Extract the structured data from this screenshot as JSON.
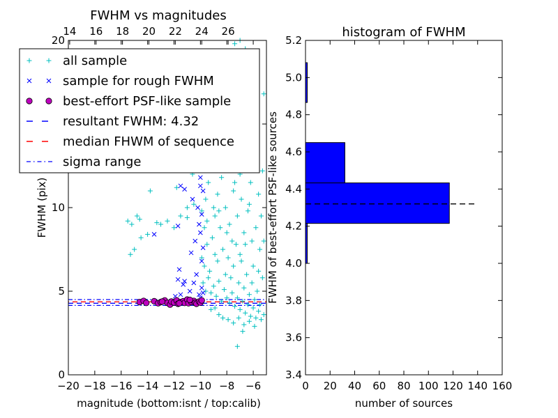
{
  "chart_data": [
    {
      "type": "scatter",
      "title": "FWHM vs magnitudes",
      "xlabel": "magnitude (bottom:isnt / top:calib)",
      "ylabel": "FWHM (pix)",
      "xlim": [
        -20,
        -5
      ],
      "ylim": [
        0,
        20
      ],
      "xticks": [
        "−20",
        "−18",
        "−16",
        "−14",
        "−12",
        "−10",
        "−8",
        "−6"
      ],
      "xtick_values": [
        -20,
        -18,
        -16,
        -14,
        -12,
        -10,
        -8,
        -6
      ],
      "yticks": [
        "0",
        "5",
        "10",
        "15",
        "20"
      ],
      "ytick_values": [
        0,
        5,
        10,
        15,
        20
      ],
      "top_axis_ticks": [
        "14",
        "16",
        "18",
        "20",
        "22",
        "24",
        "26"
      ],
      "top_axis_values": [
        14,
        16,
        18,
        20,
        22,
        24,
        26
      ],
      "top_axis_offset": 33.9,
      "grid": false,
      "legend_position": "upper-left",
      "legend": [
        {
          "label": "all sample",
          "marker": "+",
          "color": "#00bfbf"
        },
        {
          "label": "sample for rough FWHM",
          "marker": "x",
          "color": "#0000ff"
        },
        {
          "label": "best-effort PSF-like sample",
          "marker": "o",
          "color": "#bf00bf"
        },
        {
          "label": "resultant FWHM: 4.32",
          "line": "dashed",
          "color": "#0000ff"
        },
        {
          "label": "median FHWM of sequence",
          "line": "dashed",
          "color": "#ff0000"
        },
        {
          "label": "sigma range",
          "line": "dashdot",
          "color": "#0000ff"
        }
      ],
      "resultant_fwhm": 4.32,
      "median_fwhm": 4.32,
      "sigma_range": [
        4.15,
        4.5
      ],
      "series": [
        {
          "name": "all sample",
          "marker": "+",
          "color": "#00bfbf",
          "points": [
            [
              -15.5,
              9.2
            ],
            [
              -15.2,
              9.0
            ],
            [
              -14.8,
              9.5
            ],
            [
              -14.6,
              9.3
            ],
            [
              -14.5,
              8.2
            ],
            [
              -15.0,
              7.5
            ],
            [
              -15.3,
              7.2
            ],
            [
              -14.0,
              8.4
            ],
            [
              -13.3,
              9.1
            ],
            [
              -13.0,
              9.0
            ],
            [
              -12.5,
              9.2
            ],
            [
              -12.0,
              8.8
            ],
            [
              -11.5,
              9.5
            ],
            [
              -11.0,
              10.0
            ],
            [
              -11.0,
              9.4
            ],
            [
              -10.5,
              10.2
            ],
            [
              -10.2,
              13.2
            ],
            [
              -10.0,
              12.5
            ],
            [
              -10.6,
              12.0
            ],
            [
              -11.8,
              11.2
            ],
            [
              -12.2,
              12.3
            ],
            [
              -13.8,
              11.0
            ],
            [
              -12.8,
              12.8
            ],
            [
              -10.3,
              14.0
            ],
            [
              -10.0,
              15.0
            ],
            [
              -9.8,
              16.2
            ],
            [
              -9.5,
              17.2
            ],
            [
              -9.2,
              18.4
            ],
            [
              -9.0,
              17.8
            ],
            [
              -8.8,
              16.5
            ],
            [
              -8.5,
              15.0
            ],
            [
              -8.2,
              14.0
            ],
            [
              -7.9,
              14.5
            ],
            [
              -7.6,
              16.0
            ],
            [
              -7.3,
              13.0
            ],
            [
              -7.0,
              12.0
            ],
            [
              -6.8,
              14.8
            ],
            [
              -6.5,
              12.5
            ],
            [
              -6.2,
              11.5
            ],
            [
              -5.9,
              13.0
            ],
            [
              -5.6,
              10.8
            ],
            [
              -5.3,
              12.2
            ],
            [
              -5.2,
              16.8
            ],
            [
              -7.4,
              19.8
            ],
            [
              -7.0,
              20.0
            ],
            [
              -6.6,
              19.5
            ],
            [
              -9.9,
              9.8
            ],
            [
              -9.6,
              10.5
            ],
            [
              -9.4,
              11.5
            ],
            [
              -9.1,
              12.5
            ],
            [
              -8.9,
              9.5
            ],
            [
              -8.7,
              10.8
            ],
            [
              -8.4,
              11.8
            ],
            [
              -8.1,
              10.0
            ],
            [
              -7.8,
              9.0
            ],
            [
              -7.5,
              11.0
            ],
            [
              -7.2,
              9.5
            ],
            [
              -6.9,
              10.5
            ],
            [
              -6.7,
              8.5
            ],
            [
              -6.4,
              9.8
            ],
            [
              -6.1,
              8.0
            ],
            [
              -5.8,
              8.8
            ],
            [
              -5.5,
              7.5
            ],
            [
              -5.2,
              8.0
            ],
            [
              -9.9,
              7.0
            ],
            [
              -9.7,
              6.5
            ],
            [
              -9.5,
              7.8
            ],
            [
              -9.3,
              6.2
            ],
            [
              -9.1,
              8.2
            ],
            [
              -8.9,
              7.2
            ],
            [
              -8.7,
              6.8
            ],
            [
              -8.5,
              8.8
            ],
            [
              -8.3,
              7.5
            ],
            [
              -8.1,
              6.0
            ],
            [
              -7.9,
              7.0
            ],
            [
              -7.7,
              5.8
            ],
            [
              -7.5,
              6.5
            ],
            [
              -7.3,
              7.8
            ],
            [
              -7.1,
              5.5
            ],
            [
              -6.9,
              6.8
            ],
            [
              -6.7,
              5.2
            ],
            [
              -6.5,
              6.0
            ],
            [
              -6.3,
              4.8
            ],
            [
              -6.1,
              5.5
            ],
            [
              -5.9,
              4.5
            ],
            [
              -5.7,
              5.0
            ],
            [
              -5.5,
              4.2
            ],
            [
              -5.3,
              5.8
            ],
            [
              -9.8,
              5.5
            ],
            [
              -9.6,
              5.0
            ],
            [
              -9.4,
              5.8
            ],
            [
              -9.2,
              4.9
            ],
            [
              -9.0,
              5.3
            ],
            [
              -8.8,
              4.7
            ],
            [
              -8.6,
              5.6
            ],
            [
              -8.4,
              4.4
            ],
            [
              -8.2,
              5.1
            ],
            [
              -8.0,
              4.6
            ],
            [
              -7.8,
              4.3
            ],
            [
              -7.6,
              4.9
            ],
            [
              -7.4,
              4.1
            ],
            [
              -7.2,
              4.6
            ],
            [
              -7.0,
              3.9
            ],
            [
              -6.8,
              4.4
            ],
            [
              -6.6,
              3.7
            ],
            [
              -6.4,
              4.2
            ],
            [
              -6.2,
              3.5
            ],
            [
              -6.0,
              4.0
            ],
            [
              -5.8,
              3.4
            ],
            [
              -5.6,
              3.8
            ],
            [
              -5.4,
              3.3
            ],
            [
              -5.2,
              3.6
            ],
            [
              -8.6,
              3.6
            ],
            [
              -8.3,
              3.4
            ],
            [
              -7.9,
              3.3
            ],
            [
              -7.5,
              3.1
            ],
            [
              -7.1,
              3.4
            ],
            [
              -6.7,
              3.0
            ],
            [
              -6.3,
              3.2
            ],
            [
              -5.9,
              2.9
            ],
            [
              -7.2,
              1.7
            ],
            [
              -6.8,
              2.6
            ],
            [
              -9.2,
              3.9
            ],
            [
              -8.9,
              4.0
            ],
            [
              -9.7,
              8.8
            ],
            [
              -9.0,
              10.0
            ],
            [
              -8.6,
              9.8
            ],
            [
              -8.0,
              8.5
            ],
            [
              -7.6,
              8.0
            ],
            [
              -7.0,
              7.2
            ],
            [
              -6.6,
              7.8
            ],
            [
              -6.0,
              6.5
            ],
            [
              -5.6,
              6.2
            ],
            [
              -9.5,
              9.2
            ],
            [
              -8.2,
              12.8
            ],
            [
              -7.4,
              11.5
            ],
            [
              -6.3,
              10.2
            ],
            [
              -5.4,
              9.5
            ]
          ]
        },
        {
          "name": "sample for rough FWHM",
          "marker": "x",
          "color": "#0000ff",
          "points": [
            [
              -13.5,
              8.4
            ],
            [
              -11.6,
              6.3
            ],
            [
              -11.7,
              5.7
            ],
            [
              -11.3,
              5.4
            ],
            [
              -11.9,
              4.7
            ],
            [
              -12.4,
              4.4
            ],
            [
              -11.5,
              4.8
            ],
            [
              -11.0,
              4.5
            ],
            [
              -11.2,
              5.6
            ],
            [
              -11.7,
              8.9
            ],
            [
              -11.2,
              11.1
            ],
            [
              -11.5,
              11.3
            ],
            [
              -11.9,
              12.8
            ],
            [
              -10.8,
              5.0
            ],
            [
              -10.5,
              5.5
            ],
            [
              -10.3,
              6.0
            ],
            [
              -10.7,
              7.3
            ],
            [
              -10.4,
              8.0
            ],
            [
              -10.1,
              9.0
            ],
            [
              -10.6,
              10.5
            ],
            [
              -10.0,
              11.8
            ],
            [
              -10.2,
              13.0
            ],
            [
              -10.5,
              12.5
            ],
            [
              -10.2,
              10.0
            ],
            [
              -10.1,
              4.8
            ],
            [
              -10.0,
              4.6
            ],
            [
              -9.9,
              5.2
            ],
            [
              -9.8,
              4.9
            ],
            [
              -9.9,
              6.8
            ],
            [
              -9.8,
              7.6
            ],
            [
              -10.0,
              8.5
            ],
            [
              -9.9,
              9.6
            ],
            [
              -9.8,
              11.0
            ],
            [
              -10.0,
              12.8
            ],
            [
              -9.9,
              13.5
            ],
            [
              -9.8,
              14.2
            ],
            [
              -10.1,
              14.5
            ],
            [
              -10.0,
              11.3
            ]
          ]
        },
        {
          "name": "best-effort PSF-like sample",
          "marker": "o",
          "color": "#bf00bf",
          "points": [
            [
              -14.6,
              4.35
            ],
            [
              -14.3,
              4.42
            ],
            [
              -14.1,
              4.3
            ],
            [
              -13.5,
              4.4
            ],
            [
              -13.2,
              4.28
            ],
            [
              -13.0,
              4.35
            ],
            [
              -12.7,
              4.45
            ],
            [
              -12.5,
              4.3
            ],
            [
              -12.3,
              4.2
            ],
            [
              -12.2,
              4.38
            ],
            [
              -12.0,
              4.32
            ],
            [
              -11.8,
              4.45
            ],
            [
              -11.7,
              4.25
            ],
            [
              -11.5,
              4.35
            ],
            [
              -11.3,
              4.4
            ],
            [
              -11.2,
              4.3
            ],
            [
              -11.0,
              4.5
            ],
            [
              -10.9,
              4.28
            ],
            [
              -10.7,
              4.36
            ],
            [
              -10.5,
              4.42
            ],
            [
              -10.4,
              4.3
            ],
            [
              -10.3,
              4.25
            ],
            [
              -10.1,
              4.38
            ],
            [
              -10.0,
              4.32
            ],
            [
              -9.9,
              4.45
            ],
            [
              -12.9,
              4.38
            ],
            [
              -11.6,
              4.28
            ],
            [
              -10.8,
              4.48
            ]
          ]
        }
      ]
    },
    {
      "type": "bar",
      "orientation": "horizontal",
      "title": "histogram of FWHM",
      "xlabel": "number of sources",
      "ylabel": "FWHM of best-effort PSF-like sources",
      "xlim": [
        0,
        160
      ],
      "ylim": [
        3.4,
        5.2
      ],
      "xticks": [
        "0",
        "20",
        "40",
        "60",
        "80",
        "100",
        "120",
        "140",
        "160"
      ],
      "xtick_values": [
        0,
        20,
        40,
        60,
        80,
        100,
        120,
        140,
        160
      ],
      "yticks": [
        "3.4",
        "3.6",
        "3.8",
        "4.0",
        "4.2",
        "4.4",
        "4.6",
        "4.8",
        "5.0",
        "5.2"
      ],
      "ytick_values": [
        3.4,
        3.6,
        3.8,
        4.0,
        4.2,
        4.4,
        4.6,
        4.8,
        5.0,
        5.2
      ],
      "bar_color": "#0000ff",
      "bins": [
        {
          "low": 4.0,
          "high": 4.215,
          "count": 1
        },
        {
          "low": 4.215,
          "high": 4.433,
          "count": 117
        },
        {
          "low": 4.433,
          "high": 4.65,
          "count": 32
        },
        {
          "low": 4.65,
          "high": 4.866,
          "count": 0
        },
        {
          "low": 4.866,
          "high": 5.08,
          "count": 1
        }
      ],
      "reference_line": {
        "y": 4.32,
        "x_range": [
          0,
          138
        ],
        "style": "dashed",
        "color": "#000000"
      }
    }
  ]
}
